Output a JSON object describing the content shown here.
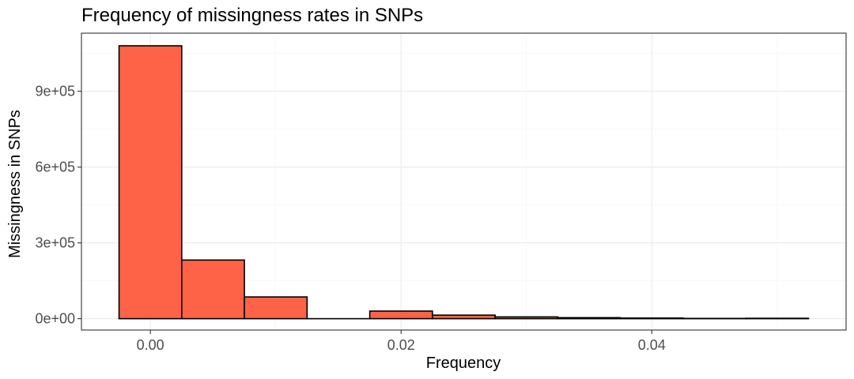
{
  "chart_data": {
    "type": "bar",
    "title": "Frequency of missingness rates in SNPs",
    "xlabel": "Frequency",
    "ylabel": "Missingness in SNPs",
    "bar_color": "#FF6347",
    "bar_outline": "#000000",
    "grid": true,
    "legend": "none",
    "xlim": [
      -0.0055,
      0.0555
    ],
    "ylim": [
      -45000,
      1130000
    ],
    "x_ticks": [
      {
        "value": 0.0,
        "label": "0.00"
      },
      {
        "value": 0.02,
        "label": "0.02"
      },
      {
        "value": 0.04,
        "label": "0.04"
      }
    ],
    "x_minor_ticks": [
      0.01,
      0.03,
      0.05
    ],
    "y_ticks": [
      {
        "value": 0,
        "label": "0e+00"
      },
      {
        "value": 300000,
        "label": "3e+05"
      },
      {
        "value": 600000,
        "label": "6e+05"
      },
      {
        "value": 900000,
        "label": "9e+05"
      }
    ],
    "y_minor_ticks": [
      150000,
      450000,
      750000,
      1050000
    ],
    "bins": [
      {
        "x0": -0.0025,
        "x1": 0.0025,
        "value": 1080000
      },
      {
        "x0": 0.0025,
        "x1": 0.0075,
        "value": 232000
      },
      {
        "x0": 0.0075,
        "x1": 0.0125,
        "value": 86000
      },
      {
        "x0": 0.0125,
        "x1": 0.0175,
        "value": 0
      },
      {
        "x0": 0.0175,
        "x1": 0.0225,
        "value": 30000
      },
      {
        "x0": 0.0225,
        "x1": 0.0275,
        "value": 14000
      },
      {
        "x0": 0.0275,
        "x1": 0.0325,
        "value": 7000
      },
      {
        "x0": 0.0325,
        "x1": 0.0375,
        "value": 4000
      },
      {
        "x0": 0.0375,
        "x1": 0.0425,
        "value": 2500
      },
      {
        "x0": 0.0425,
        "x1": 0.0475,
        "value": 1000
      },
      {
        "x0": 0.0475,
        "x1": 0.0525,
        "value": 1500
      }
    ]
  }
}
